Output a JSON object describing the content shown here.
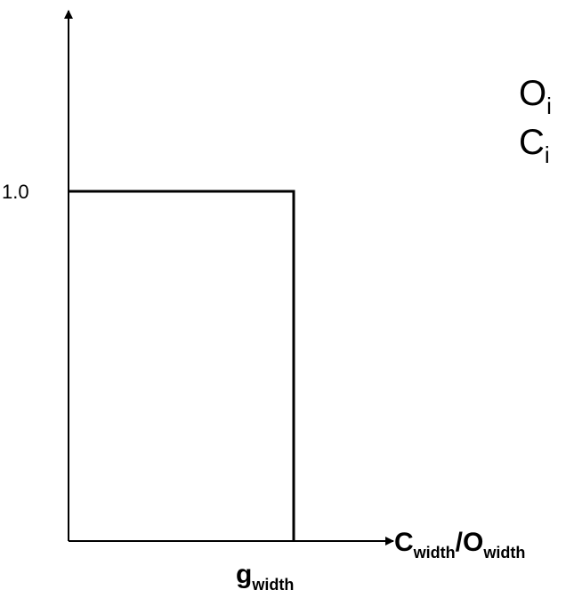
{
  "y_tick": "1.0",
  "x_axis_label": {
    "c": "C",
    "c_sub": "width",
    "slash": "/",
    "o": "O",
    "o_sub": "width"
  },
  "threshold_label": {
    "main": "g",
    "sub": "width"
  },
  "legend": [
    {
      "main": "O",
      "sub": "i"
    },
    {
      "main": "C",
      "sub": "i"
    }
  ]
}
